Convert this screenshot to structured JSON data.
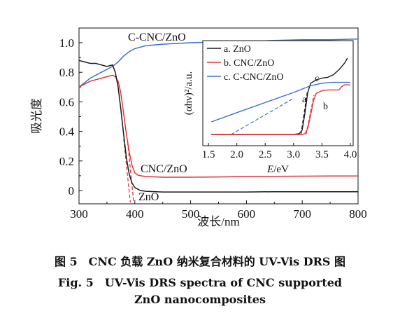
{
  "chart_data": [
    {
      "type": "line",
      "xlabel": "波长/nm",
      "ylabel": "吸光度",
      "xlim": [
        300,
        800
      ],
      "ylim": [
        -0.1,
        1.1
      ],
      "x_ticks": [
        "300",
        "400",
        "500",
        "600",
        "700",
        "800"
      ],
      "y_ticks": [
        "0",
        "0.2",
        "0.4",
        "0.6",
        "0.8",
        "1.0"
      ],
      "annotations": [
        "C-CNC/ZnO",
        "CNC/ZnO",
        "ZnO"
      ],
      "series": [
        {
          "name": "C-CNC/ZnO",
          "color": "#3a6fcf",
          "x": [
            300,
            310,
            320,
            330,
            340,
            350,
            360,
            370,
            380,
            390,
            400,
            420,
            450,
            500,
            550,
            600,
            650,
            700,
            750,
            800
          ],
          "y": [
            0.7,
            0.73,
            0.76,
            0.78,
            0.8,
            0.82,
            0.84,
            0.87,
            0.91,
            0.94,
            0.96,
            0.98,
            0.99,
            1.0,
            1.005,
            1.01,
            1.015,
            1.02,
            1.02,
            1.025
          ]
        },
        {
          "name": "CNC/ZnO",
          "color": "#e0353a",
          "x": [
            300,
            310,
            320,
            330,
            340,
            350,
            360,
            365,
            370,
            375,
            380,
            385,
            390,
            395,
            400,
            405,
            410,
            420,
            450,
            500,
            550,
            600,
            650,
            700,
            750,
            800
          ],
          "y": [
            0.7,
            0.72,
            0.74,
            0.75,
            0.76,
            0.77,
            0.78,
            0.77,
            0.74,
            0.66,
            0.52,
            0.38,
            0.26,
            0.17,
            0.12,
            0.105,
            0.1,
            0.095,
            0.09,
            0.09,
            0.092,
            0.095,
            0.096,
            0.097,
            0.098,
            0.098
          ]
        },
        {
          "name": "ZnO",
          "color": "#1a1a1a",
          "x": [
            300,
            310,
            320,
            330,
            340,
            350,
            360,
            365,
            370,
            375,
            380,
            385,
            390,
            395,
            400,
            405,
            410,
            420,
            450,
            500,
            550,
            600,
            650,
            700,
            750,
            800
          ],
          "y": [
            0.88,
            0.87,
            0.86,
            0.86,
            0.85,
            0.84,
            0.85,
            0.8,
            0.7,
            0.55,
            0.38,
            0.22,
            0.11,
            0.05,
            0.02,
            0.01,
            0.0,
            -0.005,
            -0.01,
            -0.01,
            -0.01,
            -0.01,
            -0.008,
            -0.008,
            -0.008,
            -0.008
          ]
        }
      ],
      "tangents": [
        {
          "color": "#e0353a",
          "x": [
            387,
            398
          ],
          "y": [
            0.33,
            -0.08
          ]
        },
        {
          "color": "#e0353a",
          "x": [
            380,
            392
          ],
          "y": [
            0.35,
            -0.08
          ]
        }
      ]
    },
    {
      "type": "line",
      "xlabel": "E/eV",
      "ylabel": "(αhν)²/a.u.",
      "xlim": [
        1.4,
        4.05
      ],
      "x_ticks": [
        "1.5",
        "2.0",
        "2.5",
        "3.0",
        "3.5",
        "4.0"
      ],
      "legend": [
        "a. ZnO",
        "b. CNC/ZnO",
        "c. C-CNC/ZnO"
      ],
      "curve_labels": [
        "a",
        "b",
        "c"
      ],
      "series": [
        {
          "name": "a. ZnO",
          "color": "#1a1a1a",
          "x": [
            1.55,
            2.5,
            3.0,
            3.1,
            3.15,
            3.2,
            3.25,
            3.3,
            3.4,
            3.5,
            3.6,
            3.7,
            3.8,
            3.9,
            3.95
          ],
          "y": [
            0.05,
            0.05,
            0.05,
            0.06,
            0.1,
            0.3,
            0.55,
            0.66,
            0.7,
            0.72,
            0.73,
            0.76,
            0.82,
            0.9,
            0.96
          ]
        },
        {
          "name": "b. CNC/ZnO",
          "color": "#e0353a",
          "x": [
            1.55,
            2.5,
            3.0,
            3.15,
            3.2,
            3.25,
            3.3,
            3.35,
            3.4,
            3.5,
            3.6,
            3.8,
            3.85,
            3.9,
            4.0
          ],
          "y": [
            0.05,
            0.05,
            0.05,
            0.05,
            0.06,
            0.12,
            0.28,
            0.45,
            0.54,
            0.57,
            0.58,
            0.58,
            0.62,
            0.64,
            0.64
          ]
        },
        {
          "name": "c. C-CNC/ZnO",
          "color": "#3a6fcf",
          "x": [
            1.55,
            2.0,
            2.5,
            3.0,
            3.3,
            3.5,
            3.7,
            4.0
          ],
          "y": [
            0.2,
            0.31,
            0.43,
            0.55,
            0.63,
            0.66,
            0.67,
            0.67
          ]
        }
      ],
      "tangents": [
        {
          "color": "#3a6fcf",
          "x": [
            1.9,
            3.0
          ],
          "y": [
            0.05,
            0.48
          ]
        },
        {
          "color": "#1a1a1a",
          "x": [
            3.13,
            3.24
          ],
          "y": [
            0.05,
            0.55
          ]
        },
        {
          "color": "#e0353a",
          "x": [
            3.22,
            3.36
          ],
          "y": [
            0.05,
            0.52
          ]
        }
      ]
    }
  ],
  "caption": {
    "cn": "图 5　CNC 负载 ZnO 纳米复合材料的 UV-Vis DRS 图",
    "en_line1": "Fig. 5　UV-Vis DRS spectra of CNC supported",
    "en_line2": "ZnO nanocomposites"
  }
}
